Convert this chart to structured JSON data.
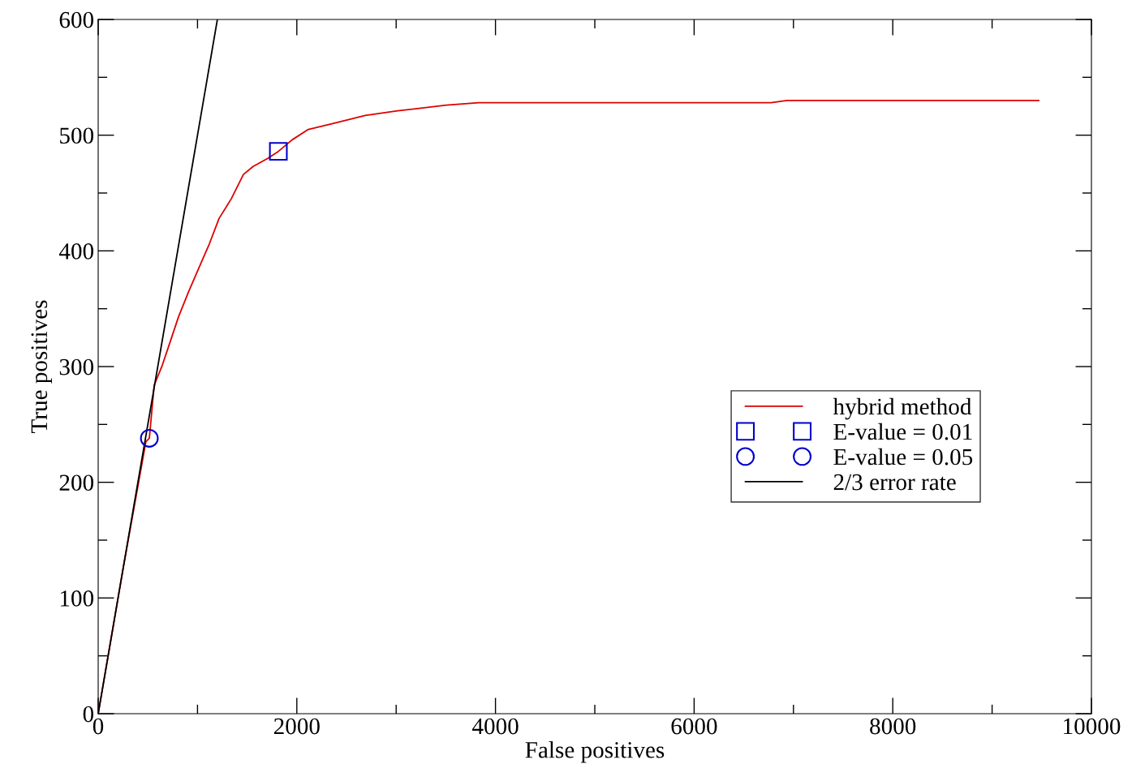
{
  "chart_data": {
    "type": "line",
    "xlabel": "False positives",
    "ylabel": "True positives",
    "xlim": [
      0,
      10000
    ],
    "ylim": [
      0,
      600
    ],
    "xticks": [
      0,
      {
        "value": 1000,
        "label": null
      },
      2000,
      {
        "value": 3000,
        "label": null
      },
      4000,
      {
        "value": 5000,
        "label": null
      },
      6000,
      {
        "value": 7000,
        "label": null
      },
      8000,
      {
        "value": 9000,
        "label": null
      },
      10000
    ],
    "yticks": [
      0,
      {
        "value": 50,
        "label": null
      },
      100,
      {
        "value": 150,
        "label": null
      },
      200,
      {
        "value": 250,
        "label": null
      },
      300,
      {
        "value": 350,
        "label": null
      },
      400,
      {
        "value": 450,
        "label": null
      },
      500,
      {
        "value": 550,
        "label": null
      },
      600
    ],
    "grid": false,
    "legend": "right",
    "series": [
      {
        "name": "hybrid method",
        "color": "#dd0000",
        "marker": "none",
        "line_style": "solid",
        "x": [
          0,
          250,
          480,
          515,
          564,
          645,
          727,
          809,
          907,
          1013,
          1119,
          1217,
          1340,
          1462,
          1560,
          1708,
          1814,
          1953,
          2116,
          2361,
          2688,
          3015,
          3505,
          3832,
          6773,
          6936,
          9469
        ],
        "values": [
          0,
          125,
          235,
          238,
          284,
          301,
          322,
          343,
          364,
          385,
          406,
          428,
          445,
          466,
          473,
          480,
          486,
          496,
          505,
          510,
          517,
          521,
          526,
          528,
          528,
          530,
          530
        ]
      },
      {
        "name": "E-value = 0.01",
        "type": "scatter",
        "color": "#0000cc",
        "marker": "square",
        "x": [
          1814
        ],
        "values": [
          486
        ]
      },
      {
        "name": "E-value = 0.05",
        "type": "scatter",
        "color": "#0000cc",
        "marker": "circle",
        "x": [
          515
        ],
        "values": [
          238
        ]
      },
      {
        "name": "2/3 error rate",
        "color": "#000000",
        "marker": "none",
        "line_style": "solid",
        "x": [
          0,
          1200
        ],
        "values": [
          0,
          600
        ]
      }
    ]
  }
}
